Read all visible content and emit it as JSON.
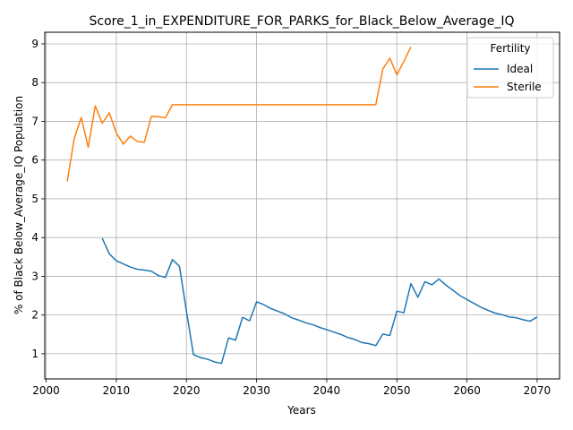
{
  "chart_data": {
    "type": "line",
    "title": "Score_1_in_EXPENDITURE_FOR_PARKS_for_Black_Below_Average_IQ",
    "xlabel": "Years",
    "ylabel": "% of Black Below_Average_IQ Population",
    "xlim": [
      1999.8,
      2073.2
    ],
    "ylim": [
      0.35,
      9.3
    ],
    "xticks": [
      2000,
      2010,
      2020,
      2030,
      2040,
      2050,
      2060,
      2070
    ],
    "yticks": [
      1,
      2,
      3,
      4,
      5,
      6,
      7,
      8,
      9
    ],
    "grid": true,
    "legend": {
      "title": "Fertility",
      "placement": "top-right"
    },
    "series": [
      {
        "name": "Ideal",
        "color": "#1f77b4",
        "points": [
          [
            2008,
            3.98
          ],
          [
            2009,
            3.58
          ],
          [
            2010,
            3.4
          ],
          [
            2011,
            3.32
          ],
          [
            2012,
            3.24
          ],
          [
            2013,
            3.18
          ],
          [
            2014,
            3.16
          ],
          [
            2015,
            3.13
          ],
          [
            2016,
            3.02
          ],
          [
            2017,
            2.97
          ],
          [
            2018,
            3.43
          ],
          [
            2019,
            3.26
          ],
          [
            2020,
            2.1
          ],
          [
            2021,
            0.98
          ],
          [
            2022,
            0.9
          ],
          [
            2023,
            0.86
          ],
          [
            2024,
            0.79
          ],
          [
            2025,
            0.75
          ],
          [
            2026,
            1.41
          ],
          [
            2027,
            1.35
          ],
          [
            2028,
            1.94
          ],
          [
            2029,
            1.85
          ],
          [
            2030,
            2.34
          ],
          [
            2031,
            2.27
          ],
          [
            2032,
            2.17
          ],
          [
            2033,
            2.1
          ],
          [
            2034,
            2.03
          ],
          [
            2035,
            1.93
          ],
          [
            2036,
            1.87
          ],
          [
            2037,
            1.8
          ],
          [
            2038,
            1.75
          ],
          [
            2039,
            1.68
          ],
          [
            2040,
            1.62
          ],
          [
            2041,
            1.56
          ],
          [
            2042,
            1.5
          ],
          [
            2043,
            1.42
          ],
          [
            2044,
            1.37
          ],
          [
            2045,
            1.29
          ],
          [
            2046,
            1.26
          ],
          [
            2047,
            1.21
          ],
          [
            2048,
            1.51
          ],
          [
            2049,
            1.47
          ],
          [
            2050,
            2.1
          ],
          [
            2051,
            2.06
          ],
          [
            2052,
            2.81
          ],
          [
            2053,
            2.46
          ],
          [
            2054,
            2.86
          ],
          [
            2055,
            2.78
          ],
          [
            2056,
            2.93
          ],
          [
            2057,
            2.77
          ],
          [
            2058,
            2.64
          ],
          [
            2059,
            2.5
          ],
          [
            2060,
            2.4
          ],
          [
            2061,
            2.3
          ],
          [
            2062,
            2.2
          ],
          [
            2063,
            2.12
          ],
          [
            2064,
            2.05
          ],
          [
            2065,
            2.01
          ],
          [
            2066,
            1.95
          ],
          [
            2067,
            1.93
          ],
          [
            2068,
            1.88
          ],
          [
            2069,
            1.84
          ],
          [
            2070,
            1.95
          ]
        ]
      },
      {
        "name": "Sterile",
        "color": "#ff7f0e",
        "points": [
          [
            2003,
            5.45
          ],
          [
            2004,
            6.55
          ],
          [
            2005,
            7.1
          ],
          [
            2006,
            6.33
          ],
          [
            2007,
            7.4
          ],
          [
            2008,
            6.95
          ],
          [
            2009,
            7.22
          ],
          [
            2010,
            6.7
          ],
          [
            2011,
            6.41
          ],
          [
            2012,
            6.62
          ],
          [
            2013,
            6.48
          ],
          [
            2014,
            6.46
          ],
          [
            2015,
            7.13
          ],
          [
            2016,
            7.12
          ],
          [
            2017,
            7.09
          ],
          [
            2018,
            7.43
          ],
          [
            2019,
            7.43
          ],
          [
            2020,
            7.43
          ],
          [
            2025,
            7.43
          ],
          [
            2030,
            7.43
          ],
          [
            2035,
            7.43
          ],
          [
            2040,
            7.43
          ],
          [
            2045,
            7.43
          ],
          [
            2047,
            7.43
          ],
          [
            2048,
            8.35
          ],
          [
            2049,
            8.63
          ],
          [
            2050,
            8.2
          ],
          [
            2051,
            8.55
          ],
          [
            2052,
            8.92
          ]
        ]
      }
    ]
  }
}
